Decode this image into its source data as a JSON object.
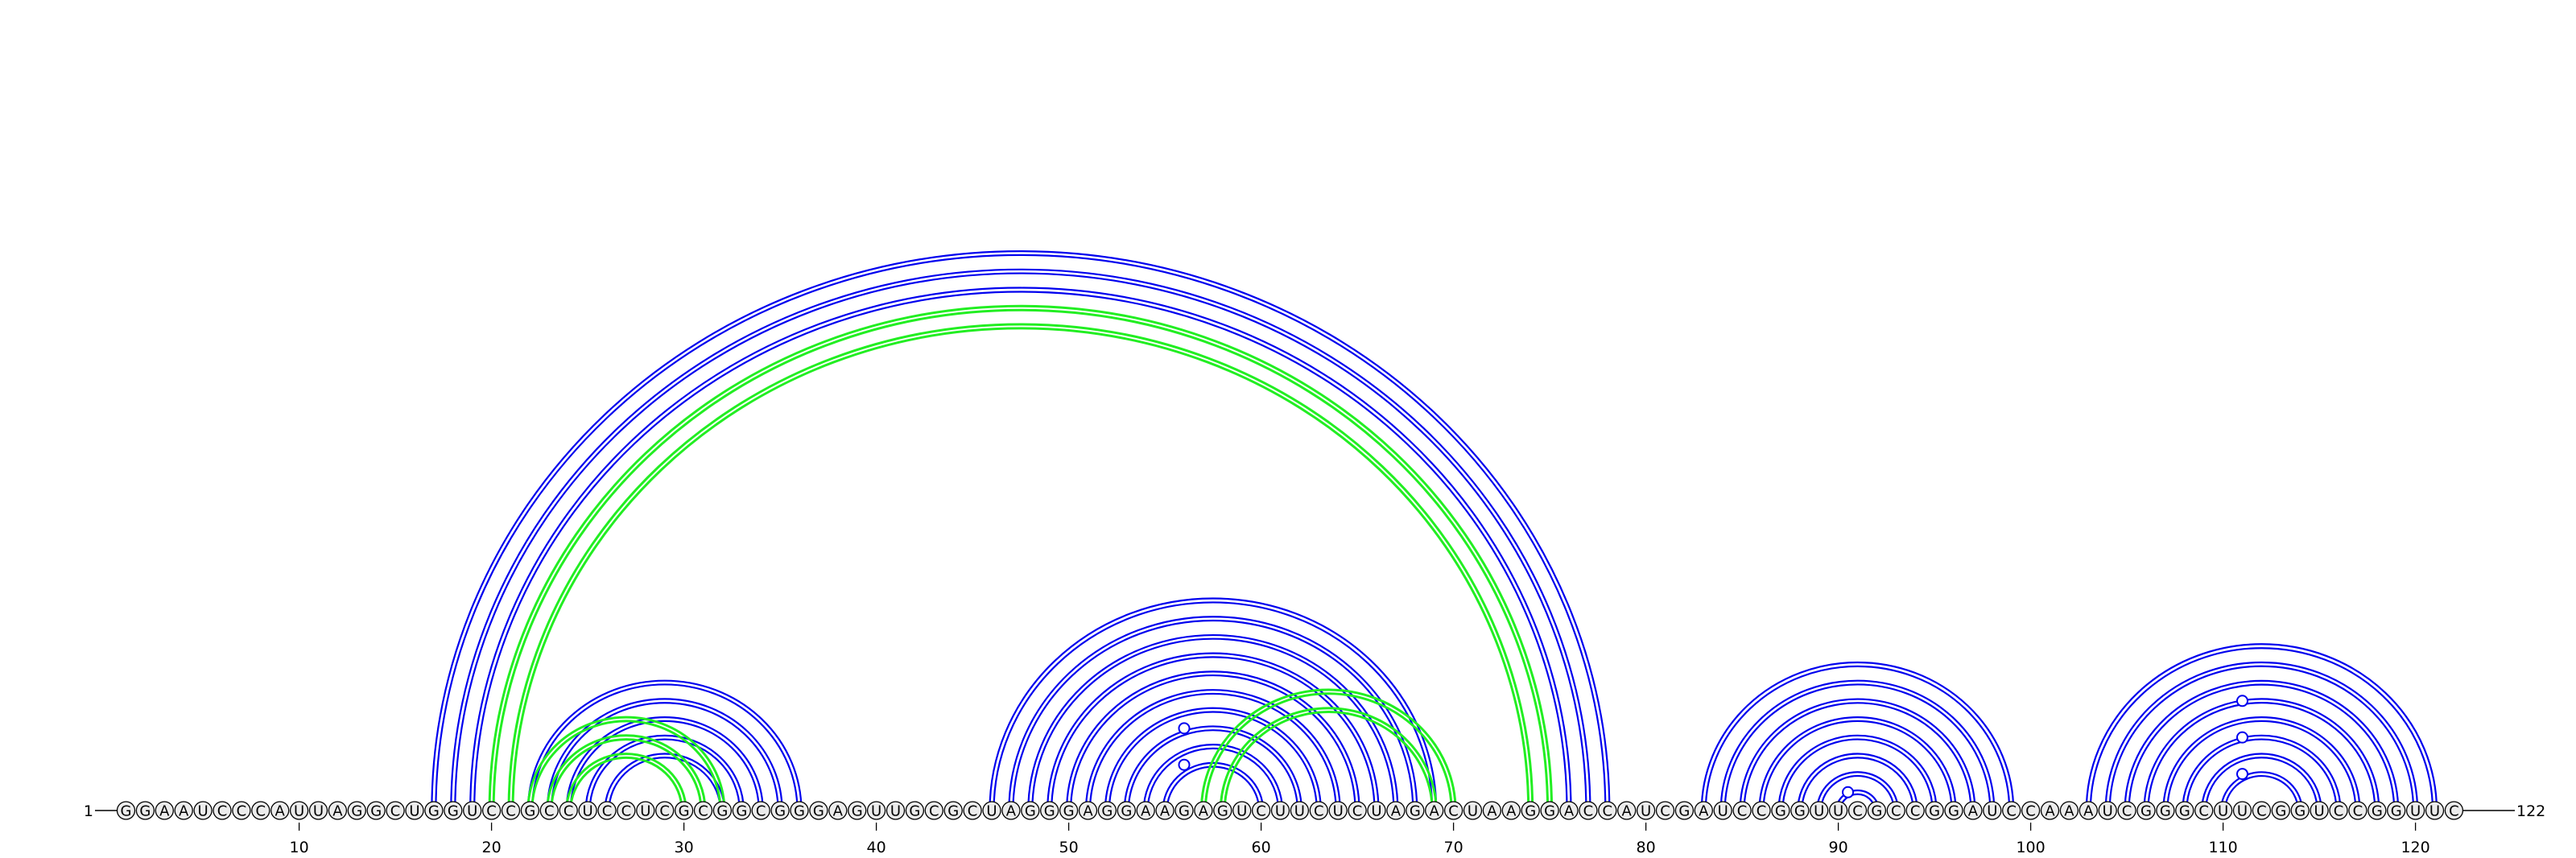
{
  "sequence": "GGAAUCCCAUUAGGCUGGUCCGCCUCCUCGCGGCGGGAGUUGCGCUAGGGAGGAAGAGUCUUCUCUAGACUAAGGACCAUCGAUCCGGUUCGCCGGAUCCAAAUCGGGCUUCGGUCCGGUUC",
  "start_label": "1",
  "end_label": "122",
  "tick_labels": [
    "10",
    "20",
    "30",
    "40",
    "50",
    "60",
    "70",
    "80",
    "90",
    "100",
    "110",
    "120"
  ],
  "tick_positions": [
    10,
    20,
    30,
    40,
    50,
    60,
    70,
    80,
    90,
    100,
    110,
    120
  ],
  "colors": {
    "pair_primary": "#0000ee",
    "pair_secondary": "#22ee22",
    "nucleotide_fill": "#ececec"
  },
  "structure_primary_pairs": [
    [
      17,
      78
    ],
    [
      18,
      77
    ],
    [
      19,
      76
    ],
    [
      22,
      36
    ],
    [
      23,
      35
    ],
    [
      24,
      34
    ],
    [
      25,
      33
    ],
    [
      26,
      32
    ],
    [
      46,
      69
    ],
    [
      47,
      68
    ],
    [
      48,
      67
    ],
    [
      49,
      66
    ],
    [
      50,
      65
    ],
    [
      51,
      64
    ],
    [
      52,
      63
    ],
    [
      53,
      62
    ],
    [
      54,
      61
    ],
    [
      55,
      60
    ],
    [
      83,
      99
    ],
    [
      84,
      98
    ],
    [
      85,
      97
    ],
    [
      86,
      96
    ],
    [
      87,
      95
    ],
    [
      88,
      94
    ],
    [
      89,
      93
    ],
    [
      90,
      92
    ],
    [
      103,
      121
    ],
    [
      104,
      120
    ],
    [
      105,
      119
    ],
    [
      106,
      118
    ],
    [
      107,
      117
    ],
    [
      108,
      116
    ],
    [
      109,
      115
    ],
    [
      110,
      114
    ]
  ],
  "structure_secondary_pairs": [
    [
      20,
      75
    ],
    [
      21,
      74
    ],
    [
      22,
      32
    ],
    [
      23,
      31
    ],
    [
      24,
      30
    ],
    [
      57,
      70
    ],
    [
      58,
      69
    ]
  ],
  "loop_markers": [
    56,
    56,
    90.5,
    111,
    111,
    111
  ]
}
